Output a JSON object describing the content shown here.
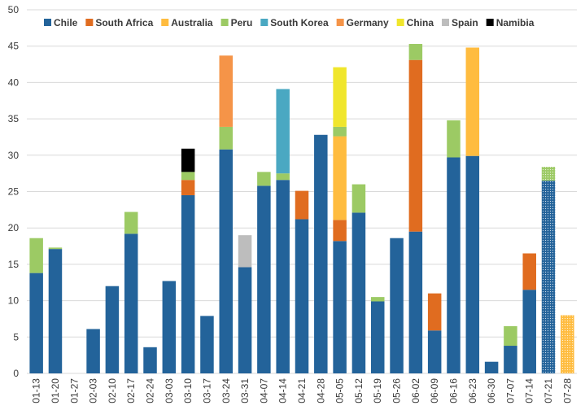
{
  "chart_data": {
    "type": "bar",
    "stacked": true,
    "title": "",
    "xlabel": "",
    "ylabel": "",
    "ylim": [
      0,
      50
    ],
    "yticks": [
      0,
      5,
      10,
      15,
      20,
      25,
      30,
      35,
      40,
      45,
      50
    ],
    "grid": "horizontal",
    "legend_position": "top-left",
    "categories": [
      "01-13",
      "01-20",
      "01-27",
      "02-03",
      "02-10",
      "02-17",
      "02-24",
      "03-03",
      "03-10",
      "03-17",
      "03-24",
      "03-31",
      "04-07",
      "04-14",
      "04-21",
      "04-28",
      "05-05",
      "05-12",
      "05-19",
      "05-26",
      "06-02",
      "06-09",
      "06-16",
      "06-23",
      "06-30",
      "07-07",
      "07-14",
      "07-21",
      "07-28"
    ],
    "projected_categories": [
      "07-21",
      "07-28"
    ],
    "series": [
      {
        "name": "Chile",
        "color": "#23639a",
        "values": [
          13.8,
          17.1,
          0,
          6.1,
          12.0,
          19.2,
          3.6,
          12.7,
          24.5,
          7.9,
          30.8,
          14.6,
          25.8,
          26.6,
          21.2,
          32.8,
          18.2,
          22.1,
          9.9,
          18.6,
          19.5,
          5.9,
          29.7,
          29.9,
          1.6,
          3.8,
          11.5,
          26.5,
          0
        ]
      },
      {
        "name": "South Africa",
        "color": "#e06c20",
        "values": [
          0,
          0,
          0,
          0,
          0,
          0,
          0,
          0,
          2.1,
          0,
          0,
          0,
          0,
          0,
          3.9,
          0,
          2.9,
          0,
          0,
          0,
          23.6,
          5.1,
          0,
          0,
          0,
          0,
          5.0,
          0,
          0
        ]
      },
      {
        "name": "Australia",
        "color": "#ffbc3f",
        "values": [
          0,
          0,
          0,
          0,
          0,
          0,
          0,
          0,
          0,
          0,
          0,
          0,
          0,
          0,
          0,
          0,
          11.5,
          0,
          0,
          0,
          0,
          0,
          0,
          14.9,
          0,
          0,
          0,
          0,
          8.0
        ]
      },
      {
        "name": "Peru",
        "color": "#9cca64",
        "values": [
          4.8,
          0.2,
          0,
          0,
          0,
          3.0,
          0,
          0,
          1.1,
          0,
          3.1,
          0,
          1.9,
          0.9,
          0,
          0,
          1.3,
          3.9,
          0.6,
          0,
          2.2,
          0,
          5.1,
          0,
          0,
          2.7,
          0,
          1.9,
          0
        ]
      },
      {
        "name": "South Korea",
        "color": "#4aa8c2",
        "values": [
          0,
          0,
          0,
          0,
          0,
          0,
          0,
          0,
          0,
          0,
          0,
          0,
          0,
          11.6,
          0,
          0,
          0,
          0,
          0,
          0,
          0,
          0,
          0,
          0,
          0,
          0,
          0,
          0,
          0
        ]
      },
      {
        "name": "Germany",
        "color": "#f59448",
        "values": [
          0,
          0,
          0,
          0,
          0,
          0,
          0,
          0,
          0,
          0,
          9.8,
          0,
          0,
          0,
          0,
          0,
          0,
          0,
          0,
          0,
          0,
          0,
          0,
          0,
          0,
          0,
          0,
          0,
          0
        ]
      },
      {
        "name": "China",
        "color": "#f0e62c",
        "values": [
          0,
          0,
          0,
          0,
          0,
          0,
          0,
          0,
          0,
          0,
          0,
          0,
          0,
          0,
          0,
          0,
          8.2,
          0,
          0,
          0,
          0,
          0,
          0,
          0,
          0,
          0,
          0,
          0,
          0
        ]
      },
      {
        "name": "Spain",
        "color": "#bdbdbd",
        "values": [
          0,
          0,
          0,
          0,
          0,
          0,
          0,
          0,
          0,
          0,
          0,
          4.4,
          0,
          0,
          0,
          0,
          0,
          0,
          0,
          0,
          0,
          0,
          0,
          0,
          0,
          0,
          0,
          0,
          0
        ]
      },
      {
        "name": "Namibia",
        "color": "#000000",
        "values": [
          0,
          0,
          0,
          0,
          0,
          0,
          0,
          0,
          3.2,
          0,
          0,
          0,
          0,
          0,
          0,
          0,
          0,
          0,
          0,
          0,
          0,
          0,
          0,
          0,
          0,
          0,
          0,
          0,
          0
        ]
      }
    ]
  }
}
